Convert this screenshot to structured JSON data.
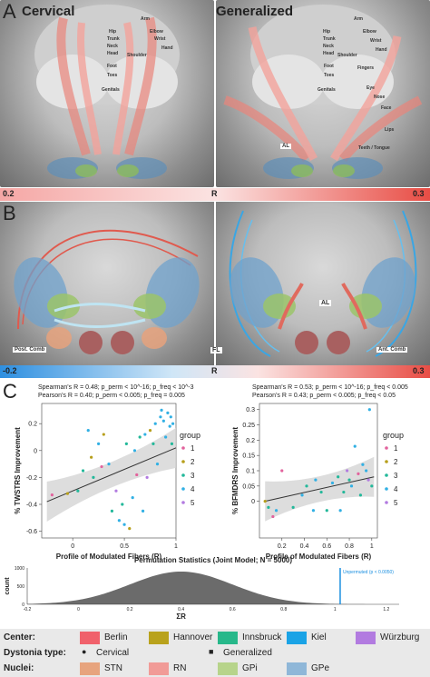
{
  "panel_a": {
    "letter": "A",
    "left_title": "Cervical",
    "right_title": "Generalized",
    "homunculus_left": [
      "Hip",
      "Trunk",
      "Neck",
      "Head",
      "Shoulder",
      "Arm",
      "Elbow",
      "Wrist",
      "Hand",
      "Foot",
      "Toes",
      "Genitals"
    ],
    "homunculus_right": [
      "Hip",
      "Trunk",
      "Neck",
      "Head",
      "Shoulder",
      "Arm",
      "Elbow",
      "Wrist",
      "Hand",
      "Fingers",
      "Eye",
      "Nose",
      "Face",
      "Lips",
      "Teeth / Tongue",
      "Foot",
      "Toes",
      "Genitals"
    ],
    "al_label": "AL",
    "cbar_min": "0.2",
    "cbar_mid": "R",
    "cbar_max": "0.3"
  },
  "panel_b": {
    "letter": "B",
    "al_label": "AL",
    "fl_label": "FL",
    "post_comb": "Post. Comb",
    "ant_comb": "Ant. Comb",
    "cbar_min": "-0.2",
    "cbar_mid": "R",
    "cbar_max": "0.3"
  },
  "panel_c": {
    "letter": "C",
    "left_stats": {
      "line1": "Spearman's  R = 0.48; p_perm < 10^-16; p_freq < 10^-3",
      "line2": "Pearson's   R = 0.40; p_perm < 0.005; p_freq = 0.005"
    },
    "right_stats": {
      "line1": "Spearman's  R = 0.53; p_perm < 10^-16; p_freq < 0.005",
      "line2": "Pearson's   R = 0.43; p_perm < 0.005; p_freq < 0.05"
    },
    "group_legend_title": "group",
    "groups": [
      "1",
      "2",
      "3",
      "4",
      "5"
    ],
    "group_colors": [
      "#e2639d",
      "#b79f1c",
      "#23b89a",
      "#31b0e4",
      "#b27be0"
    ]
  },
  "chart_data": [
    {
      "type": "scatter",
      "xlabel": "Profile of Modulated Fibers (R)",
      "ylabel": "% TWSTRS Improvement",
      "xlim": [
        -0.3,
        1.0
      ],
      "ylim": [
        -0.65,
        0.35
      ],
      "xticks": [
        "0",
        "0.5",
        "1"
      ],
      "yticks": [
        "-0.6",
        "-0.4",
        "-0.2",
        "0",
        "0.2"
      ],
      "fit": {
        "x": [
          -0.25,
          1.0
        ],
        "y": [
          -0.38,
          0.02
        ]
      },
      "points": [
        {
          "x": -0.2,
          "y": -0.33,
          "g": 1
        },
        {
          "x": -0.05,
          "y": -0.32,
          "g": 2
        },
        {
          "x": 0.05,
          "y": -0.3,
          "g": 3
        },
        {
          "x": 0.1,
          "y": -0.15,
          "g": 3
        },
        {
          "x": 0.15,
          "y": 0.15,
          "g": 4
        },
        {
          "x": 0.18,
          "y": -0.05,
          "g": 2
        },
        {
          "x": 0.2,
          "y": -0.2,
          "g": 3
        },
        {
          "x": 0.25,
          "y": 0.05,
          "g": 4
        },
        {
          "x": 0.28,
          "y": -0.12,
          "g": 1
        },
        {
          "x": 0.3,
          "y": 0.12,
          "g": 2
        },
        {
          "x": 0.35,
          "y": -0.1,
          "g": 4
        },
        {
          "x": 0.38,
          "y": -0.45,
          "g": 3
        },
        {
          "x": 0.42,
          "y": -0.3,
          "g": 5
        },
        {
          "x": 0.45,
          "y": -0.52,
          "g": 4
        },
        {
          "x": 0.48,
          "y": -0.4,
          "g": 3
        },
        {
          "x": 0.5,
          "y": -0.55,
          "g": 4
        },
        {
          "x": 0.52,
          "y": 0.05,
          "g": 3
        },
        {
          "x": 0.55,
          "y": -0.58,
          "g": 2
        },
        {
          "x": 0.58,
          "y": -0.35,
          "g": 4
        },
        {
          "x": 0.6,
          "y": 0.0,
          "g": 4
        },
        {
          "x": 0.62,
          "y": -0.18,
          "g": 1
        },
        {
          "x": 0.65,
          "y": 0.1,
          "g": 3
        },
        {
          "x": 0.68,
          "y": -0.45,
          "g": 4
        },
        {
          "x": 0.7,
          "y": 0.12,
          "g": 4
        },
        {
          "x": 0.72,
          "y": -0.2,
          "g": 5
        },
        {
          "x": 0.75,
          "y": 0.15,
          "g": 2
        },
        {
          "x": 0.78,
          "y": 0.05,
          "g": 3
        },
        {
          "x": 0.8,
          "y": 0.2,
          "g": 4
        },
        {
          "x": 0.82,
          "y": -0.1,
          "g": 4
        },
        {
          "x": 0.85,
          "y": 0.25,
          "g": 4
        },
        {
          "x": 0.86,
          "y": 0.3,
          "g": 4
        },
        {
          "x": 0.88,
          "y": 0.22,
          "g": 4
        },
        {
          "x": 0.9,
          "y": 0.1,
          "g": 4
        },
        {
          "x": 0.92,
          "y": 0.28,
          "g": 4
        },
        {
          "x": 0.94,
          "y": 0.18,
          "g": 4
        },
        {
          "x": 0.95,
          "y": 0.25,
          "g": 4
        },
        {
          "x": 0.96,
          "y": 0.05,
          "g": 3
        },
        {
          "x": 0.97,
          "y": 0.2,
          "g": 4
        }
      ]
    },
    {
      "type": "scatter",
      "xlabel": "Profile of Modulated Fibers (R)",
      "ylabel": "% BFMDRS Improvement",
      "xlim": [
        0.0,
        1.05
      ],
      "ylim": [
        -0.12,
        0.32
      ],
      "xticks": [
        "0.2",
        "0.4",
        "0.6",
        "0.8",
        "1"
      ],
      "yticks": [
        "0",
        "0.05",
        "0.1",
        "0.15",
        "0.2",
        "0.25",
        "0.3"
      ],
      "fit": {
        "x": [
          0.05,
          1.02
        ],
        "y": [
          0.0,
          0.08
        ]
      },
      "points": [
        {
          "x": 0.05,
          "y": 0.0,
          "g": 2
        },
        {
          "x": 0.08,
          "y": -0.02,
          "g": 3
        },
        {
          "x": 0.12,
          "y": -0.05,
          "g": 1
        },
        {
          "x": 0.15,
          "y": -0.03,
          "g": 4
        },
        {
          "x": 0.2,
          "y": 0.1,
          "g": 1
        },
        {
          "x": 0.3,
          "y": -0.02,
          "g": 3
        },
        {
          "x": 0.38,
          "y": 0.02,
          "g": 4
        },
        {
          "x": 0.42,
          "y": 0.05,
          "g": 3
        },
        {
          "x": 0.48,
          "y": -0.03,
          "g": 4
        },
        {
          "x": 0.5,
          "y": 0.07,
          "g": 4
        },
        {
          "x": 0.55,
          "y": 0.03,
          "g": 3
        },
        {
          "x": 0.6,
          "y": -0.03,
          "g": 3
        },
        {
          "x": 0.65,
          "y": 0.06,
          "g": 4
        },
        {
          "x": 0.7,
          "y": 0.08,
          "g": 3
        },
        {
          "x": 0.72,
          "y": -0.03,
          "g": 4
        },
        {
          "x": 0.75,
          "y": 0.03,
          "g": 3
        },
        {
          "x": 0.78,
          "y": 0.1,
          "g": 5
        },
        {
          "x": 0.8,
          "y": 0.07,
          "g": 3
        },
        {
          "x": 0.82,
          "y": 0.05,
          "g": 4
        },
        {
          "x": 0.85,
          "y": 0.18,
          "g": 4
        },
        {
          "x": 0.88,
          "y": 0.09,
          "g": 1
        },
        {
          "x": 0.9,
          "y": 0.02,
          "g": 3
        },
        {
          "x": 0.92,
          "y": 0.12,
          "g": 4
        },
        {
          "x": 0.95,
          "y": 0.1,
          "g": 4
        },
        {
          "x": 0.97,
          "y": 0.07,
          "g": 5
        },
        {
          "x": 0.98,
          "y": 0.3,
          "g": 4
        },
        {
          "x": 1.0,
          "y": 0.05,
          "g": 3
        }
      ]
    },
    {
      "type": "area",
      "title": "Permutation Statistics (Joint Model; N = 5000)",
      "xlabel": "ΣR",
      "ylabel": "count",
      "xlim": [
        -0.2,
        1.25
      ],
      "ylim": [
        0,
        1000
      ],
      "xticks": [
        "-0.2",
        "0",
        "0.2",
        "0.4",
        "0.6",
        "0.8",
        "1",
        "1.2"
      ],
      "yticks": [
        "0",
        "500",
        "1000"
      ],
      "mean": 0.4,
      "sd": 0.2,
      "peak": 900,
      "unpermuted_x": 1.02,
      "unpermuted_label": "Unpermuted (p < 0.0050)"
    }
  ],
  "legend": {
    "center_label": "Center:",
    "centers": [
      {
        "name": "Berlin",
        "color": "#f0616b"
      },
      {
        "name": "Hannover",
        "color": "#b9a21c"
      },
      {
        "name": "Innsbruck",
        "color": "#27b88a"
      },
      {
        "name": "Kiel",
        "color": "#1aa3e6"
      },
      {
        "name": "Würzburg",
        "color": "#b27be0"
      }
    ],
    "dystonia_label": "Dystonia type:",
    "dystonia_types": [
      {
        "name": "Cervical",
        "marker": "●"
      },
      {
        "name": "Generalized",
        "marker": "■"
      }
    ],
    "nuclei_label": "Nuclei:",
    "nuclei": [
      {
        "name": "STN",
        "color": "#e7a47e"
      },
      {
        "name": "RN",
        "color": "#f19b97"
      },
      {
        "name": "GPi",
        "color": "#b7d48b"
      },
      {
        "name": "GPe",
        "color": "#8fb7d8"
      }
    ]
  }
}
